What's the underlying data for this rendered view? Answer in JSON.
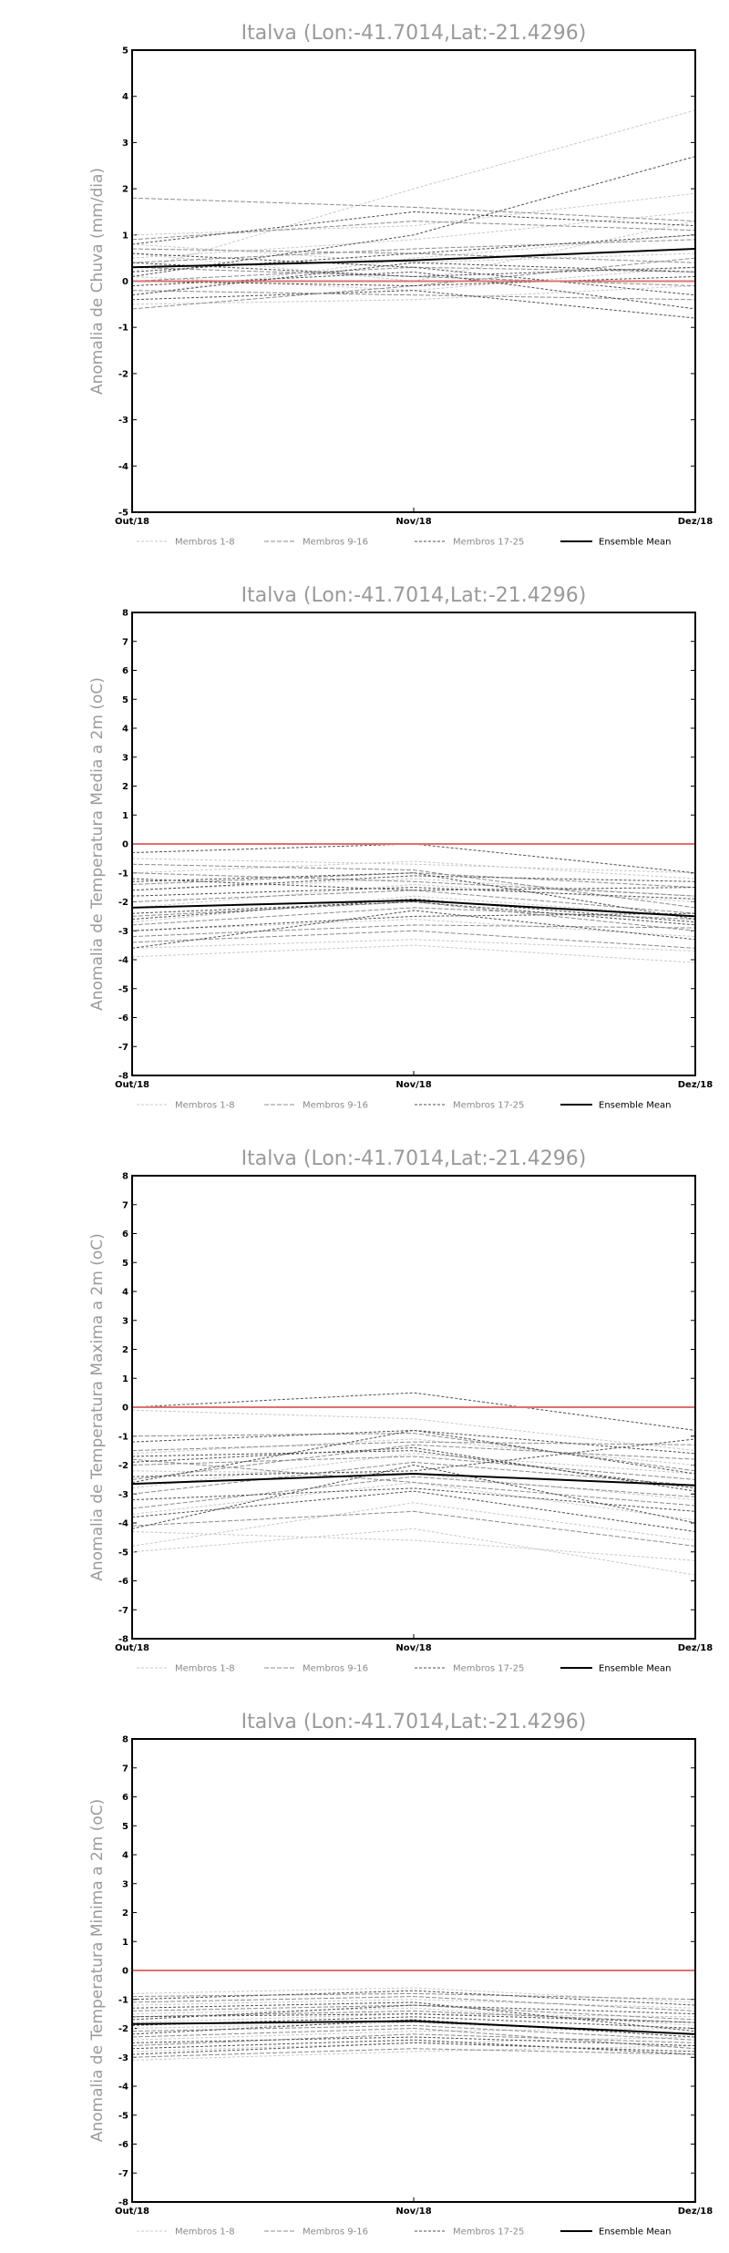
{
  "legend": {
    "group1": "Membros 1-8",
    "group2": "Membros 9-16",
    "group3": "Membros 17-25",
    "mean": "Ensemble Mean"
  },
  "colors": {
    "group1": "#c8c8c8",
    "group2": "#8c8c8c",
    "group3": "#505050",
    "mean": "#000000",
    "zero_line": "#e07070"
  },
  "chart_data": [
    {
      "type": "line",
      "title": "Italva (Lon:-41.7014,Lat:-21.4296)",
      "ylabel": "Anomalia de Chuva (mm/dia)",
      "categories": [
        "Out/18",
        "Nov/18",
        "Dez/18"
      ],
      "ylim": [
        -5,
        5
      ],
      "yticks": [
        -5,
        -4,
        -3,
        -2,
        -1,
        0,
        1,
        2,
        3,
        4,
        5
      ],
      "reference_line": 0,
      "legend_position": "bottom",
      "series": [
        {
          "group": 1,
          "values": [
            0.2,
            2.0,
            3.7
          ]
        },
        {
          "group": 1,
          "values": [
            1.0,
            1.2,
            1.9
          ]
        },
        {
          "group": 1,
          "values": [
            0.5,
            0.9,
            1.5
          ]
        },
        {
          "group": 1,
          "values": [
            -0.3,
            0.5,
            1.0
          ]
        },
        {
          "group": 1,
          "values": [
            0.8,
            0.4,
            0.6
          ]
        },
        {
          "group": 1,
          "values": [
            0.1,
            -0.2,
            0.3
          ]
        },
        {
          "group": 1,
          "values": [
            -0.5,
            -0.4,
            -0.1
          ]
        },
        {
          "group": 1,
          "values": [
            0.6,
            0.0,
            1.3
          ]
        },
        {
          "group": 2,
          "values": [
            1.8,
            1.6,
            1.3
          ]
        },
        {
          "group": 2,
          "values": [
            0.9,
            1.3,
            1.1
          ]
        },
        {
          "group": 2,
          "values": [
            0.4,
            0.7,
            0.9
          ]
        },
        {
          "group": 2,
          "values": [
            0.0,
            0.3,
            0.2
          ]
        },
        {
          "group": 2,
          "values": [
            -0.2,
            -0.3,
            -0.4
          ]
        },
        {
          "group": 2,
          "values": [
            0.3,
            0.1,
            -0.1
          ]
        },
        {
          "group": 2,
          "values": [
            -0.6,
            -0.1,
            0.5
          ]
        },
        {
          "group": 2,
          "values": [
            0.7,
            0.6,
            0.4
          ]
        },
        {
          "group": 3,
          "values": [
            0.1,
            1.0,
            2.7
          ]
        },
        {
          "group": 3,
          "values": [
            0.8,
            1.5,
            1.2
          ]
        },
        {
          "group": 3,
          "values": [
            0.2,
            0.6,
            1.0
          ]
        },
        {
          "group": 3,
          "values": [
            -0.1,
            0.2,
            -0.6
          ]
        },
        {
          "group": 3,
          "values": [
            0.4,
            0.1,
            0.3
          ]
        },
        {
          "group": 3,
          "values": [
            -0.4,
            -0.2,
            -0.8
          ]
        },
        {
          "group": 3,
          "values": [
            0.0,
            -0.1,
            0.1
          ]
        },
        {
          "group": 3,
          "values": [
            0.6,
            0.3,
            -0.3
          ]
        },
        {
          "group": 3,
          "values": [
            -0.3,
            0.4,
            0.2
          ]
        }
      ],
      "mean": [
        0.3,
        0.45,
        0.7
      ]
    },
    {
      "type": "line",
      "title": "Italva (Lon:-41.7014,Lat:-21.4296)",
      "ylabel": "Anomalia de Temperatura Media a 2m (oC)",
      "categories": [
        "Out/18",
        "Nov/18",
        "Dez/18"
      ],
      "ylim": [
        -8,
        8
      ],
      "yticks": [
        -8,
        -7,
        -6,
        -5,
        -4,
        -3,
        -2,
        -1,
        0,
        1,
        2,
        3,
        4,
        5,
        6,
        7,
        8
      ],
      "reference_line": 0,
      "legend_position": "bottom",
      "series": [
        {
          "group": 1,
          "values": [
            -3.9,
            -3.5,
            -4.1
          ]
        },
        {
          "group": 1,
          "values": [
            -3.6,
            -3.3,
            -3.7
          ]
        },
        {
          "group": 1,
          "values": [
            -3.0,
            -2.6,
            -3.2
          ]
        },
        {
          "group": 1,
          "values": [
            -2.7,
            -1.8,
            -2.5
          ]
        },
        {
          "group": 1,
          "values": [
            -1.0,
            -0.6,
            -1.2
          ]
        },
        {
          "group": 1,
          "values": [
            -2.2,
            -1.4,
            -2.0
          ]
        },
        {
          "group": 1,
          "values": [
            -1.6,
            -1.2,
            -1.8
          ]
        },
        {
          "group": 1,
          "values": [
            -0.5,
            -0.7,
            -1.0
          ]
        },
        {
          "group": 2,
          "values": [
            -3.4,
            -3.0,
            -3.6
          ]
        },
        {
          "group": 2,
          "values": [
            -3.2,
            -2.8,
            -2.9
          ]
        },
        {
          "group": 2,
          "values": [
            -2.8,
            -2.2,
            -2.6
          ]
        },
        {
          "group": 2,
          "values": [
            -2.0,
            -1.6,
            -2.4
          ]
        },
        {
          "group": 2,
          "values": [
            -1.4,
            -1.0,
            -1.5
          ]
        },
        {
          "group": 2,
          "values": [
            -1.0,
            -1.3,
            -1.8
          ]
        },
        {
          "group": 2,
          "values": [
            -0.7,
            -0.9,
            -2.2
          ]
        },
        {
          "group": 2,
          "values": [
            -2.5,
            -2.0,
            -3.0
          ]
        },
        {
          "group": 3,
          "values": [
            -3.6,
            -2.3,
            -3.3
          ]
        },
        {
          "group": 3,
          "values": [
            -3.0,
            -2.5,
            -2.4
          ]
        },
        {
          "group": 3,
          "values": [
            -2.4,
            -2.0,
            -2.8
          ]
        },
        {
          "group": 3,
          "values": [
            -1.8,
            -1.5,
            -1.9
          ]
        },
        {
          "group": 3,
          "values": [
            -1.3,
            -1.0,
            -2.6
          ]
        },
        {
          "group": 3,
          "values": [
            -0.3,
            0.0,
            -1.0
          ]
        },
        {
          "group": 3,
          "values": [
            -1.2,
            -1.6,
            -1.5
          ]
        },
        {
          "group": 3,
          "values": [
            -2.6,
            -1.9,
            -2.7
          ]
        },
        {
          "group": 3,
          "values": [
            -1.6,
            -1.1,
            -1.3
          ]
        }
      ],
      "mean": [
        -2.2,
        -1.95,
        -2.5
      ]
    },
    {
      "type": "line",
      "title": "Italva (Lon:-41.7014,Lat:-21.4296)",
      "ylabel": "Anomalia de Temperatura Maxima a 2m (oC)",
      "categories": [
        "Out/18",
        "Nov/18",
        "Dez/18"
      ],
      "ylim": [
        -8,
        8
      ],
      "yticks": [
        -8,
        -7,
        -6,
        -5,
        -4,
        -3,
        -2,
        -1,
        0,
        1,
        2,
        3,
        4,
        5,
        6,
        7,
        8
      ],
      "reference_line": 0,
      "legend_position": "bottom",
      "series": [
        {
          "group": 1,
          "values": [
            -5.0,
            -4.2,
            -5.8
          ]
        },
        {
          "group": 1,
          "values": [
            -4.8,
            -3.3,
            -4.6
          ]
        },
        {
          "group": 1,
          "values": [
            -4.3,
            -4.6,
            -5.3
          ]
        },
        {
          "group": 1,
          "values": [
            -3.7,
            -2.6,
            -3.9
          ]
        },
        {
          "group": 1,
          "values": [
            -2.8,
            -1.6,
            -2.3
          ]
        },
        {
          "group": 1,
          "values": [
            -2.2,
            -2.3,
            -3.2
          ]
        },
        {
          "group": 1,
          "values": [
            -1.6,
            -1.1,
            -2.0
          ]
        },
        {
          "group": 1,
          "values": [
            -0.1,
            -0.4,
            -1.5
          ]
        },
        {
          "group": 2,
          "values": [
            -4.1,
            -3.6,
            -4.8
          ]
        },
        {
          "group": 2,
          "values": [
            -3.5,
            -2.4,
            -3.1
          ]
        },
        {
          "group": 2,
          "values": [
            -3.0,
            -1.9,
            -2.7
          ]
        },
        {
          "group": 2,
          "values": [
            -2.5,
            -1.3,
            -1.8
          ]
        },
        {
          "group": 2,
          "values": [
            -2.0,
            -1.7,
            -2.5
          ]
        },
        {
          "group": 2,
          "values": [
            -1.5,
            -1.2,
            -1.3
          ]
        },
        {
          "group": 2,
          "values": [
            -1.0,
            -0.9,
            -2.2
          ]
        },
        {
          "group": 2,
          "values": [
            -1.8,
            -2.6,
            -3.4
          ]
        },
        {
          "group": 3,
          "values": [
            -4.2,
            -2.0,
            -4.0
          ]
        },
        {
          "group": 3,
          "values": [
            -3.2,
            -2.8,
            -3.6
          ]
        },
        {
          "group": 3,
          "values": [
            -2.6,
            -0.8,
            -1.6
          ]
        },
        {
          "group": 3,
          "values": [
            -1.9,
            -1.4,
            -2.9
          ]
        },
        {
          "group": 3,
          "values": [
            -1.2,
            -0.8,
            -2.3
          ]
        },
        {
          "group": 3,
          "values": [
            0.0,
            0.5,
            -0.8
          ]
        },
        {
          "group": 3,
          "values": [
            -2.4,
            -2.2,
            -1.1
          ]
        },
        {
          "group": 3,
          "values": [
            -1.7,
            -1.5,
            -2.8
          ]
        },
        {
          "group": 3,
          "values": [
            -3.8,
            -2.9,
            -4.3
          ]
        }
      ],
      "mean": [
        -2.65,
        -2.3,
        -2.7
      ]
    },
    {
      "type": "line",
      "title": "Italva (Lon:-41.7014,Lat:-21.4296)",
      "ylabel": "Anomalia de Temperatura Minima a 2m (oC)",
      "categories": [
        "Out/18",
        "Nov/18",
        "Dez/18"
      ],
      "ylim": [
        -8,
        8
      ],
      "yticks": [
        -8,
        -7,
        -6,
        -5,
        -4,
        -3,
        -2,
        -1,
        0,
        1,
        2,
        3,
        4,
        5,
        6,
        7,
        8
      ],
      "reference_line": 0,
      "legend_position": "bottom",
      "series": [
        {
          "group": 1,
          "values": [
            -3.1,
            -2.8,
            -2.6
          ]
        },
        {
          "group": 1,
          "values": [
            -2.8,
            -2.5,
            -2.3
          ]
        },
        {
          "group": 1,
          "values": [
            -2.4,
            -2.1,
            -2.0
          ]
        },
        {
          "group": 1,
          "values": [
            -1.8,
            -1.5,
            -1.6
          ]
        },
        {
          "group": 1,
          "values": [
            -1.2,
            -1.0,
            -1.3
          ]
        },
        {
          "group": 1,
          "values": [
            -0.8,
            -0.6,
            -1.1
          ]
        },
        {
          "group": 1,
          "values": [
            -1.5,
            -1.3,
            -1.9
          ]
        },
        {
          "group": 1,
          "values": [
            -2.0,
            -1.8,
            -2.2
          ]
        },
        {
          "group": 2,
          "values": [
            -3.0,
            -2.7,
            -2.9
          ]
        },
        {
          "group": 2,
          "values": [
            -2.6,
            -2.2,
            -2.5
          ]
        },
        {
          "group": 2,
          "values": [
            -2.1,
            -1.9,
            -2.4
          ]
        },
        {
          "group": 2,
          "values": [
            -1.6,
            -1.4,
            -1.8
          ]
        },
        {
          "group": 2,
          "values": [
            -1.1,
            -0.9,
            -1.4
          ]
        },
        {
          "group": 2,
          "values": [
            -0.9,
            -0.8,
            -1.0
          ]
        },
        {
          "group": 2,
          "values": [
            -1.4,
            -1.2,
            -1.7
          ]
        },
        {
          "group": 2,
          "values": [
            -2.3,
            -2.0,
            -2.7
          ]
        },
        {
          "group": 3,
          "values": [
            -2.9,
            -2.5,
            -2.8
          ]
        },
        {
          "group": 3,
          "values": [
            -2.5,
            -2.3,
            -2.6
          ]
        },
        {
          "group": 3,
          "values": [
            -2.2,
            -1.7,
            -2.3
          ]
        },
        {
          "group": 3,
          "values": [
            -1.7,
            -1.2,
            -1.5
          ]
        },
        {
          "group": 3,
          "values": [
            -1.3,
            -1.1,
            -2.1
          ]
        },
        {
          "group": 3,
          "values": [
            -1.0,
            -0.7,
            -1.2
          ]
        },
        {
          "group": 3,
          "values": [
            -1.9,
            -1.6,
            -2.0
          ]
        },
        {
          "group": 3,
          "values": [
            -2.7,
            -2.4,
            -2.9
          ]
        },
        {
          "group": 3,
          "values": [
            -1.6,
            -1.5,
            -1.8
          ]
        }
      ],
      "mean": [
        -1.85,
        -1.75,
        -2.2
      ]
    }
  ]
}
